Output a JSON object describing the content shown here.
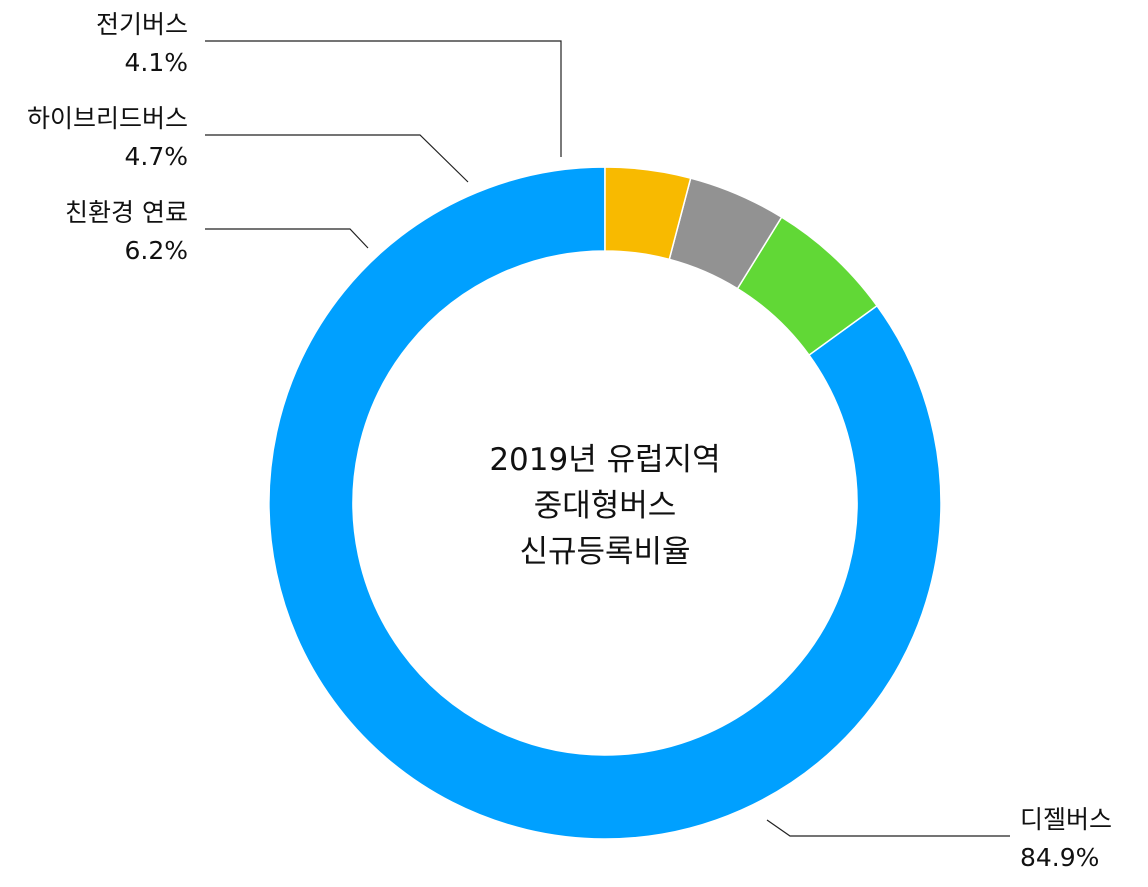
{
  "chart_data": {
    "type": "pie",
    "variant": "donut",
    "title_lines": [
      "2019년 유럽지역",
      "중대형버스",
      "신규등록비율"
    ],
    "slices": [
      {
        "name": "디젤버스",
        "value": 84.9,
        "label": "84.9%",
        "color": "#00A0FF"
      },
      {
        "name": "친환경 연료",
        "value": 6.2,
        "label": "6.2%",
        "color": "#61D836"
      },
      {
        "name": "하이브리드버스",
        "value": 4.7,
        "label": "4.7%",
        "color": "#929292"
      },
      {
        "name": "전기버스",
        "value": 4.1,
        "label": "4.1%",
        "color": "#F8BA00"
      }
    ],
    "legend": "none",
    "grid": false
  }
}
